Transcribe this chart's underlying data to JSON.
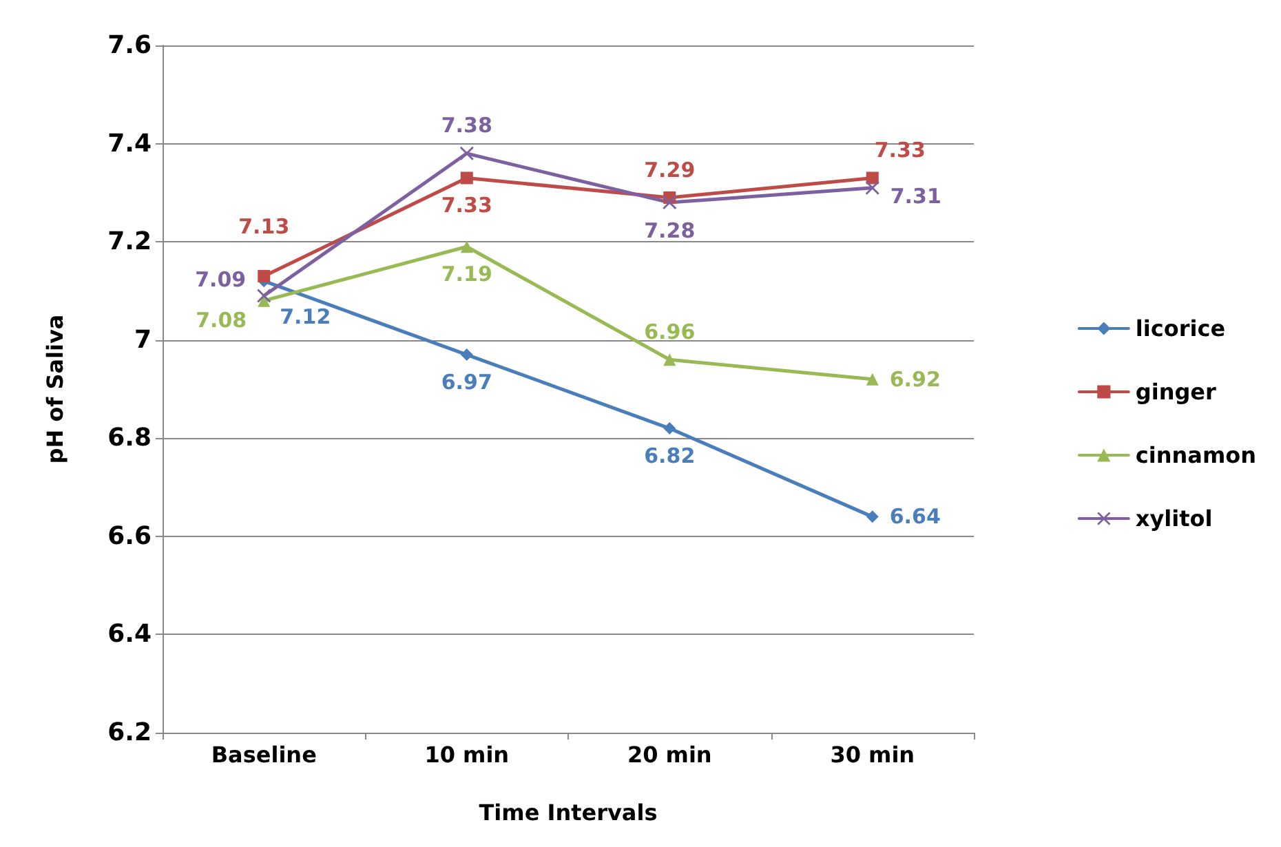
{
  "chart_data": {
    "type": "line",
    "xlabel": "Time Intervals",
    "ylabel": "pH of Saliva",
    "categories": [
      "Baseline",
      "10 min",
      "20 min",
      "30 min"
    ],
    "series": [
      {
        "name": "licorice",
        "color": "#4a7ebb",
        "marker": "diamond",
        "values": [
          7.12,
          6.97,
          6.82,
          6.64
        ]
      },
      {
        "name": "ginger",
        "color": "#be4b48",
        "marker": "square",
        "values": [
          7.13,
          7.33,
          7.29,
          7.33
        ]
      },
      {
        "name": "cinnamon",
        "color": "#98b954",
        "marker": "triangle",
        "values": [
          7.08,
          7.19,
          6.96,
          6.92
        ]
      },
      {
        "name": "xylitol",
        "color": "#7d60a0",
        "marker": "cross",
        "values": [
          7.09,
          7.38,
          7.28,
          7.31
        ]
      }
    ],
    "ylim": [
      6.2,
      7.6
    ],
    "yticks": [
      6.2,
      6.4,
      6.6,
      6.8,
      7,
      7.2,
      7.4,
      7.6
    ],
    "grid": "y",
    "legend": "right",
    "data_labels": true,
    "line_style": "solid"
  }
}
